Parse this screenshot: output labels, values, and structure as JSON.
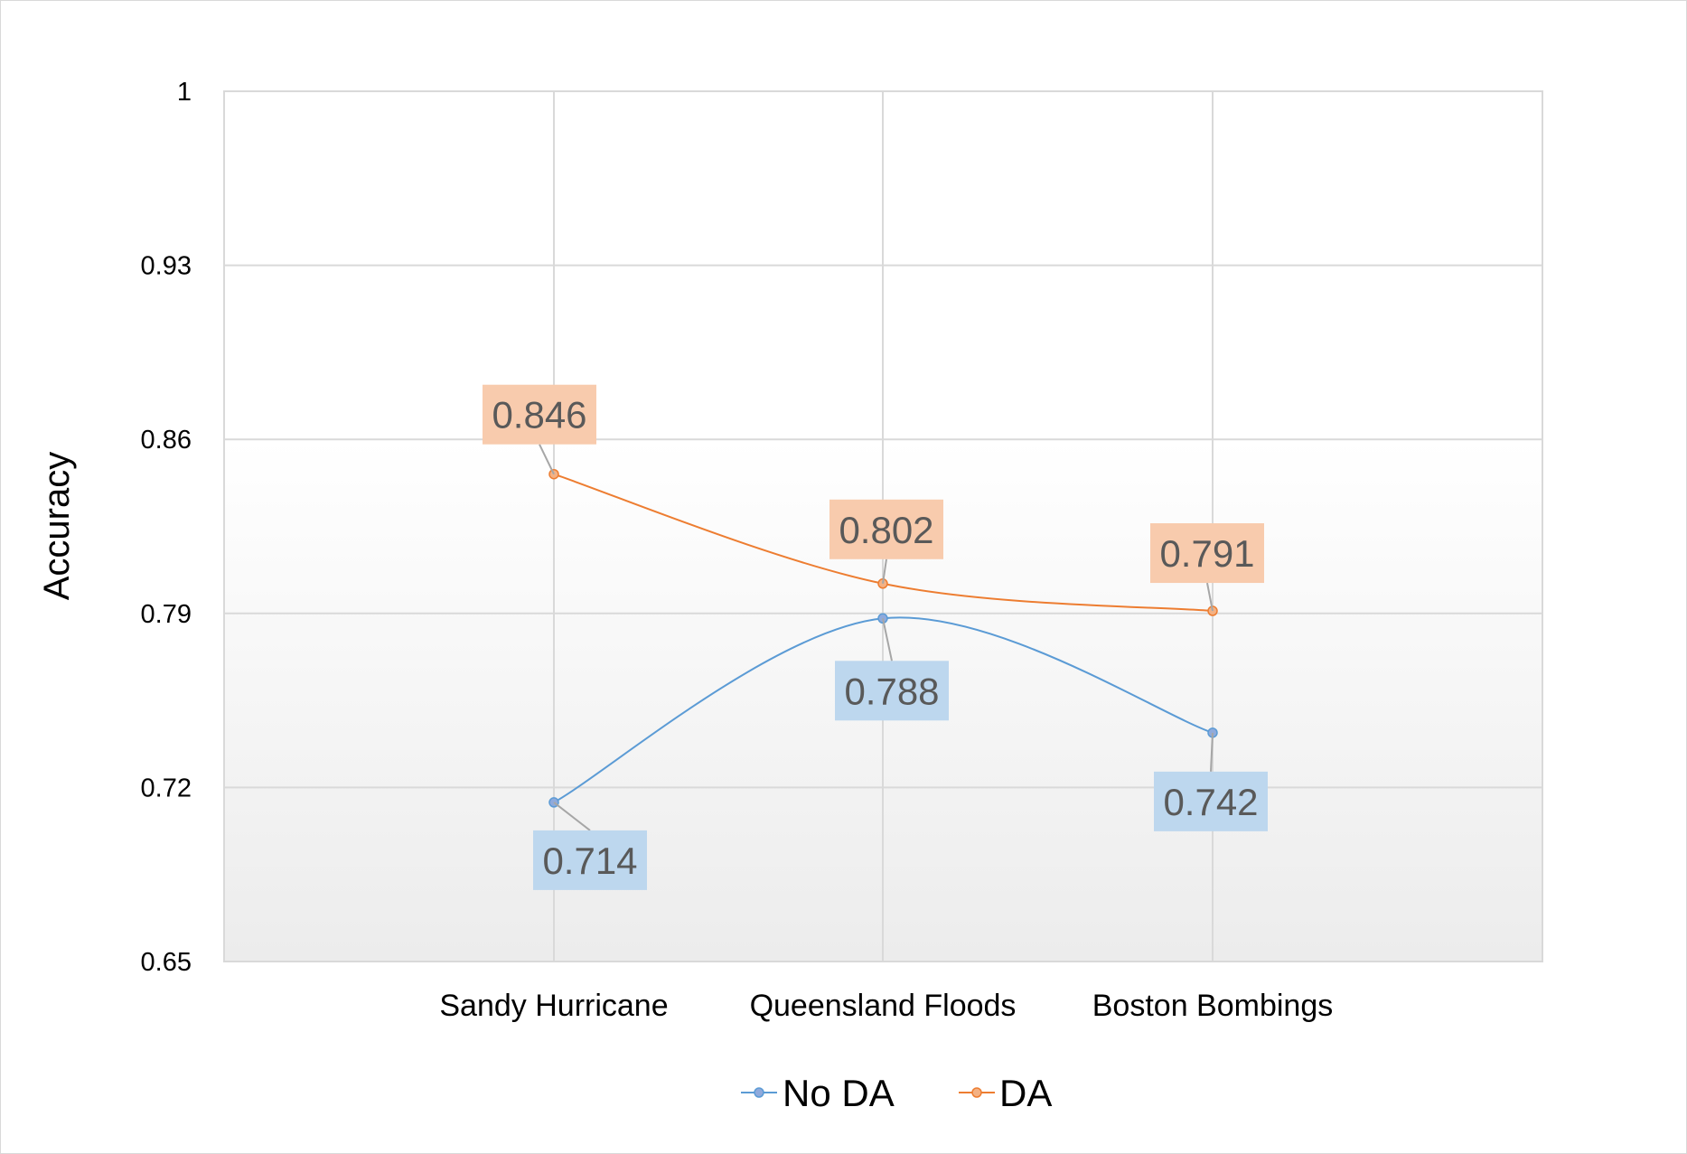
{
  "chart_data": {
    "type": "line",
    "title": "",
    "xlabel": "",
    "ylabel": "Accuracy",
    "categories": [
      "Sandy Hurricane",
      "Queensland Floods",
      "Boston Bombings"
    ],
    "ylim": [
      0.65,
      1
    ],
    "yticks": [
      "0.65",
      "0.72",
      "0.79",
      "0.86",
      "0.93",
      "1"
    ],
    "yticks_values": [
      0.65,
      0.72,
      0.79,
      0.86,
      0.93,
      1
    ],
    "grid": true,
    "smooth": true,
    "legend_position": "bottom",
    "series": [
      {
        "name": "No DA",
        "values": [
          0.714,
          0.788,
          0.742
        ],
        "labels": [
          "0.714",
          "0.788",
          "0.742"
        ],
        "color": "#8faadc",
        "line_color": "#5b9bd5",
        "label_bg": "#bdd7ee",
        "label_placement": [
          "below",
          "below",
          "below"
        ]
      },
      {
        "name": "DA",
        "values": [
          0.846,
          0.802,
          0.791
        ],
        "labels": [
          "0.846",
          "0.802",
          "0.791"
        ],
        "color": "#f4b183",
        "line_color": "#ed7d31",
        "label_bg": "#f8cbad",
        "label_placement": [
          "above",
          "above",
          "above"
        ]
      }
    ]
  }
}
